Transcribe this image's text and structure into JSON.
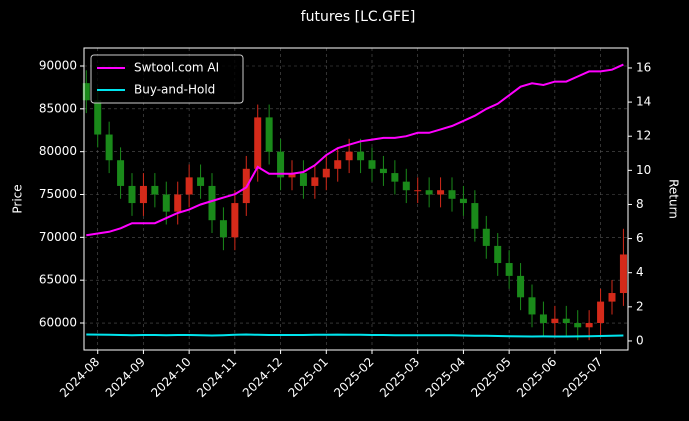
{
  "chart_data": {
    "type": "candlestick",
    "title": "futures [LC.GFE]",
    "ylabel": "Price",
    "y2label": "Return",
    "xticks": [
      {
        "value": 0,
        "label": "2024-08"
      },
      {
        "value": 1,
        "label": "2024-09"
      },
      {
        "value": 2,
        "label": "2024-10"
      },
      {
        "value": 3,
        "label": "2024-11"
      },
      {
        "value": 4,
        "label": "2024-12"
      },
      {
        "value": 5,
        "label": "2025-01"
      },
      {
        "value": 6,
        "label": "2025-02"
      },
      {
        "value": 7,
        "label": "2025-03"
      },
      {
        "value": 8,
        "label": "2025-04"
      },
      {
        "value": 9,
        "label": "2025-05"
      },
      {
        "value": 10,
        "label": "2025-06"
      },
      {
        "value": 11,
        "label": "2025-07"
      }
    ],
    "xlim": [
      -0.3,
      11.6
    ],
    "ylim": [
      56850,
      92100
    ],
    "yticks": [
      60000,
      65000,
      70000,
      75000,
      80000,
      85000,
      90000
    ],
    "y2lim": [
      -0.53,
      17.17
    ],
    "y2ticks": [
      0,
      2,
      4,
      6,
      8,
      10,
      12,
      14,
      16
    ],
    "grid": true,
    "legend": "upper left",
    "up_color": "#d42a1a",
    "down_color": "#1a8a1a",
    "x": [
      -0.25,
      0,
      0.25,
      0.5,
      0.75,
      1,
      1.25,
      1.5,
      1.75,
      2,
      2.25,
      2.5,
      2.75,
      3,
      3.25,
      3.5,
      3.75,
      4,
      4.25,
      4.5,
      4.75,
      5,
      5.25,
      5.5,
      5.75,
      6,
      6.25,
      6.5,
      6.75,
      7,
      7.25,
      7.5,
      7.75,
      8,
      8.25,
      8.5,
      8.75,
      9,
      9.25,
      9.5,
      9.75,
      10,
      10.25,
      10.5,
      10.75,
      11,
      11.25,
      11.5
    ],
    "open": [
      88000,
      86000,
      82000,
      79000,
      76000,
      74000,
      76000,
      75000,
      73000,
      75000,
      77000,
      76000,
      72000,
      70000,
      74000,
      78000,
      84000,
      80000,
      77000,
      77500,
      76000,
      77000,
      78000,
      79000,
      80000,
      79000,
      78000,
      77500,
      76500,
      75500,
      75500,
      75000,
      75500,
      74500,
      74000,
      71000,
      69000,
      67000,
      65500,
      63000,
      61000,
      60000,
      60500,
      60000,
      59500,
      60000,
      62500,
      63500
    ],
    "high": [
      89500,
      87500,
      83500,
      80500,
      77500,
      77500,
      77500,
      76500,
      76500,
      78500,
      78500,
      77500,
      73500,
      75500,
      79500,
      85500,
      85500,
      81500,
      79000,
      79000,
      78500,
      79500,
      80500,
      81500,
      81500,
      80500,
      79500,
      79000,
      78000,
      77000,
      77000,
      77000,
      77000,
      76000,
      75500,
      72500,
      70500,
      68500,
      67000,
      64500,
      62500,
      62000,
      62000,
      61500,
      61500,
      64000,
      65000,
      71000
    ],
    "low": [
      84500,
      80500,
      77500,
      74500,
      72500,
      72500,
      73500,
      71500,
      71500,
      73500,
      74500,
      70500,
      68500,
      68500,
      72500,
      76500,
      78500,
      75500,
      75500,
      74500,
      74500,
      75500,
      76500,
      77500,
      77500,
      76500,
      76000,
      75000,
      74000,
      74000,
      73500,
      73500,
      73000,
      72500,
      69500,
      67500,
      65500,
      64000,
      61500,
      59500,
      58500,
      58500,
      58500,
      58000,
      58000,
      58500,
      61000,
      62000
    ],
    "close": [
      86000,
      82000,
      79000,
      76000,
      74000,
      76000,
      75000,
      73000,
      75000,
      77000,
      76000,
      72000,
      70000,
      74000,
      78000,
      84000,
      80000,
      77000,
      77500,
      76000,
      77000,
      78000,
      79000,
      80000,
      79000,
      78000,
      77500,
      76500,
      75500,
      75500,
      75000,
      75500,
      74500,
      74000,
      71000,
      69000,
      67000,
      65500,
      63000,
      61000,
      60000,
      60500,
      60000,
      59500,
      60000,
      62500,
      63500,
      68000
    ],
    "series": [
      {
        "name": "Swtool.com AI",
        "color": "#ff00ff",
        "axis": "y2",
        "values": [
          6.2,
          6.3,
          6.4,
          6.6,
          6.9,
          6.9,
          6.9,
          7.2,
          7.5,
          7.7,
          8.0,
          8.2,
          8.4,
          8.6,
          9.0,
          10.2,
          9.8,
          9.8,
          9.8,
          9.9,
          10.3,
          10.9,
          11.3,
          11.5,
          11.7,
          11.8,
          11.9,
          11.9,
          12.0,
          12.2,
          12.2,
          12.4,
          12.6,
          12.9,
          13.2,
          13.6,
          13.9,
          14.4,
          14.9,
          15.1,
          15.0,
          15.2,
          15.2,
          15.5,
          15.8,
          15.8,
          15.9,
          16.2
        ]
      },
      {
        "name": "Buy-and-Hold",
        "color": "#00e5ee",
        "axis": "y2",
        "values": [
          0.38,
          0.37,
          0.36,
          0.35,
          0.34,
          0.35,
          0.35,
          0.34,
          0.35,
          0.35,
          0.33,
          0.32,
          0.34,
          0.36,
          0.38,
          0.36,
          0.35,
          0.35,
          0.35,
          0.35,
          0.36,
          0.36,
          0.37,
          0.36,
          0.36,
          0.35,
          0.35,
          0.34,
          0.34,
          0.34,
          0.34,
          0.34,
          0.34,
          0.32,
          0.31,
          0.3,
          0.29,
          0.28,
          0.27,
          0.26,
          0.27,
          0.26,
          0.26,
          0.27,
          0.28,
          0.29,
          0.31,
          0.32
        ]
      }
    ]
  }
}
